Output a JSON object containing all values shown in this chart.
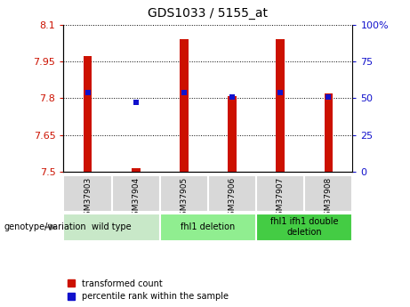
{
  "title": "GDS1033 / 5155_at",
  "samples": [
    "GSM37903",
    "GSM37904",
    "GSM37905",
    "GSM37906",
    "GSM37907",
    "GSM37908"
  ],
  "red_values": [
    7.97,
    7.515,
    8.04,
    7.81,
    8.04,
    7.82
  ],
  "blue_values": [
    7.825,
    7.785,
    7.825,
    7.805,
    7.825,
    7.805
  ],
  "ylim_left": [
    7.5,
    8.1
  ],
  "ylim_right": [
    0,
    100
  ],
  "yticks_left": [
    7.5,
    7.65,
    7.8,
    7.95,
    8.1
  ],
  "yticks_right": [
    0,
    25,
    50,
    75,
    100
  ],
  "ytick_labels_left": [
    "7.5",
    "7.65",
    "7.8",
    "7.95",
    "8.1"
  ],
  "ytick_labels_right": [
    "0",
    "25",
    "50",
    "75",
    "100%"
  ],
  "group_boundaries": [
    [
      0,
      2,
      "wild type",
      "#c8e8c8"
    ],
    [
      2,
      4,
      "fhl1 deletion",
      "#90ee90"
    ],
    [
      4,
      6,
      "fhl1 ifh1 double\ndeletion",
      "#44cc44"
    ]
  ],
  "red_color": "#cc1100",
  "blue_color": "#1111cc",
  "sample_box_color": "#d8d8d8",
  "legend_red": "transformed count",
  "legend_blue": "percentile rank within the sample",
  "genotype_label": "genotype/variation"
}
